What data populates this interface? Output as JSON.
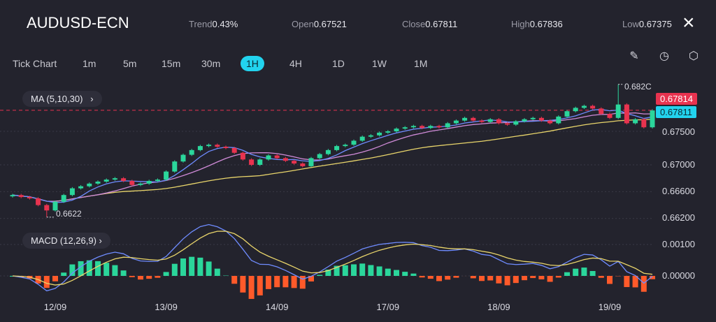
{
  "header": {
    "symbol": "AUDUSD-ECN",
    "stats": [
      {
        "label": "Trend",
        "value": "0.43%"
      },
      {
        "label": "Open",
        "value": "0.67521"
      },
      {
        "label": "Close",
        "value": "0.67811"
      },
      {
        "label": "High",
        "value": "0.67836"
      },
      {
        "label": "Low",
        "value": "0.67375"
      }
    ],
    "close_icon": "×"
  },
  "timeframes": [
    "Tick Chart",
    "1m",
    "5m",
    "15m",
    "30m",
    "1H",
    "4H",
    "1D",
    "1W",
    "1M"
  ],
  "active_timeframe": "1H",
  "tools": [
    "pencil-icon",
    "timer-icon",
    "settings-icon"
  ],
  "indicators": {
    "ma": "MA  (5,10,30)",
    "macd": "MACD  (12,26,9)",
    "chevron": "›"
  },
  "colors": {
    "up": "#2bd69b",
    "down": "#e8334f",
    "ma5": "#6f8cff",
    "ma10": "#d08bd8",
    "ma30": "#e9d56b",
    "macd": "#6f8cff",
    "signal": "#e9d56b",
    "hist_up": "#2bd69b",
    "hist_down": "#ff5a2a",
    "ask": "#e8334f",
    "bid": "#22d3ee"
  },
  "price_tags": {
    "ask": "0.67814",
    "bid": "0.67811",
    "max_label": "0.682C",
    "min_label": "0.6622"
  },
  "chart_data": {
    "type": "candlestick",
    "price_ticks": [
      "0.67500",
      "0.67000",
      "0.66600",
      "0.66200"
    ],
    "price_tick_values": [
      0.675,
      0.67,
      0.666,
      0.662
    ],
    "macd_ticks": [
      "0.00100",
      "0.00000"
    ],
    "macd_tick_values": [
      0.001,
      0
    ],
    "x_labels": [
      {
        "label": "12/09",
        "index": 5
      },
      {
        "label": "13/09",
        "index": 18
      },
      {
        "label": "14/09",
        "index": 31
      },
      {
        "label": "17/09",
        "index": 44
      },
      {
        "label": "18/09",
        "index": 57
      },
      {
        "label": "19/09",
        "index": 70
      }
    ],
    "closes": [
      0.6655,
      0.6652,
      0.665,
      0.664,
      0.6632,
      0.6645,
      0.6655,
      0.6665,
      0.6668,
      0.6672,
      0.6675,
      0.6678,
      0.668,
      0.6676,
      0.667,
      0.6672,
      0.6676,
      0.6678,
      0.669,
      0.6705,
      0.6715,
      0.6722,
      0.6728,
      0.673,
      0.6727,
      0.6725,
      0.6718,
      0.6708,
      0.67,
      0.6708,
      0.6714,
      0.671,
      0.6706,
      0.6702,
      0.6698,
      0.671,
      0.6716,
      0.6722,
      0.6728,
      0.673,
      0.6736,
      0.6742,
      0.6744,
      0.6748,
      0.675,
      0.6754,
      0.6756,
      0.6758,
      0.6755,
      0.6758,
      0.6756,
      0.6762,
      0.6766,
      0.677,
      0.6766,
      0.6764,
      0.6768,
      0.6762,
      0.676,
      0.6765,
      0.6768,
      0.677,
      0.6766,
      0.6762,
      0.6772,
      0.678,
      0.6785,
      0.6788,
      0.6784,
      0.6776,
      0.677,
      0.679,
      0.6762,
      0.6768,
      0.6756,
      0.67811
    ],
    "extreme_low": {
      "index": 4,
      "value": 0.6622
    },
    "extreme_high": {
      "index": 71,
      "value": 0.682
    },
    "ask": 0.67814
  }
}
